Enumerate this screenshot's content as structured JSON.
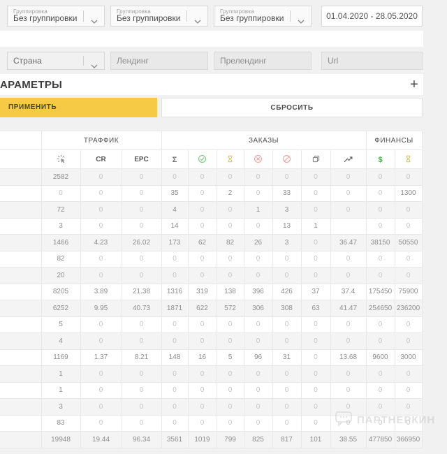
{
  "toolbar": {
    "groupings": [
      {
        "label": "Группировка",
        "value": "Без группировки"
      },
      {
        "label": "Группировка",
        "value": "Без группировки"
      },
      {
        "label": "Группировка",
        "value": "Без группировки"
      }
    ],
    "date_range": "01.04.2020 - 28.05.2020"
  },
  "filters": {
    "country_value": "Страна",
    "landing_placeholder": "Лендинг",
    "prelanding_placeholder": "Прелендинг",
    "url_placeholder": "Url"
  },
  "params": {
    "title": "АРАМЕТРЫ",
    "add_label": "+",
    "apply_label": "ПРИМЕНИТЬ",
    "reset_label": "СБРОСИТЬ"
  },
  "table": {
    "groups": [
      {
        "label": "",
        "span": 1
      },
      {
        "label": "ТРАФФИК",
        "span": 3
      },
      {
        "label": "ЗАКАЗЫ",
        "span": 7
      },
      {
        "label": "ФИНАНСЫ",
        "span": 2
      }
    ],
    "columns": [
      {
        "id": "row-name",
        "label": ""
      },
      {
        "id": "clicks",
        "icon": "cursor-click-icon",
        "color": "#8a8a8a"
      },
      {
        "id": "cr",
        "label": "CR"
      },
      {
        "id": "epc",
        "label": "EPC"
      },
      {
        "id": "orders-total",
        "glyph": "Σ",
        "color": "#6e6e6e"
      },
      {
        "id": "orders-approved",
        "icon": "check-circle-icon",
        "color": "#7cc47f"
      },
      {
        "id": "orders-pending",
        "icon": "hourglass-icon",
        "color": "#d8c56b"
      },
      {
        "id": "orders-rejected",
        "icon": "x-circle-icon",
        "color": "#efa0a0"
      },
      {
        "id": "orders-canceled",
        "icon": "no-entry-icon",
        "color": "#efa0a0"
      },
      {
        "id": "orders-duplicates",
        "icon": "copy-icon",
        "color": "#8a8a8a"
      },
      {
        "id": "orders-trend",
        "icon": "trend-up-icon",
        "color": "#5a5a5a"
      },
      {
        "id": "finance-confirmed",
        "glyph": "$",
        "color": "#4caf50"
      },
      {
        "id": "finance-pending",
        "icon": "hourglass-icon",
        "color": "#d8c56b"
      }
    ],
    "rows": [
      [
        "2582",
        "0",
        "0",
        "0",
        "0",
        "0",
        "0",
        "0",
        "0",
        "0",
        "0",
        "0"
      ],
      [
        "0",
        "0",
        "0",
        "35",
        "0",
        "2",
        "0",
        "33",
        "0",
        "0",
        "0",
        "1300"
      ],
      [
        "72",
        "0",
        "0",
        "4",
        "0",
        "0",
        "1",
        "3",
        "0",
        "0",
        "0",
        "0"
      ],
      [
        "3",
        "0",
        "0",
        "14",
        "0",
        "0",
        "0",
        "13",
        "1",
        "",
        "0",
        "0"
      ],
      [
        "1466",
        "4.23",
        "26.02",
        "173",
        "62",
        "82",
        "26",
        "3",
        "0",
        "36.47",
        "38150",
        "50550"
      ],
      [
        "82",
        "0",
        "0",
        "0",
        "0",
        "0",
        "0",
        "0",
        "0",
        "0",
        "0",
        "0"
      ],
      [
        "20",
        "0",
        "0",
        "0",
        "0",
        "0",
        "0",
        "0",
        "0",
        "0",
        "0",
        "0"
      ],
      [
        "8205",
        "3.89",
        "21.38",
        "1316",
        "319",
        "138",
        "396",
        "426",
        "37",
        "37.4",
        "175450",
        "75900"
      ],
      [
        "6252",
        "9.95",
        "40.73",
        "1871",
        "622",
        "572",
        "306",
        "308",
        "63",
        "41.47",
        "254650",
        "236200"
      ],
      [
        "5",
        "0",
        "0",
        "0",
        "0",
        "0",
        "0",
        "0",
        "0",
        "0",
        "0",
        "0"
      ],
      [
        "4",
        "0",
        "0",
        "0",
        "0",
        "0",
        "0",
        "0",
        "0",
        "0",
        "0",
        "0"
      ],
      [
        "1169",
        "1.37",
        "8.21",
        "148",
        "16",
        "5",
        "96",
        "31",
        "0",
        "13.68",
        "9600",
        "3000"
      ],
      [
        "1",
        "0",
        "0",
        "0",
        "0",
        "0",
        "0",
        "0",
        "0",
        "0",
        "0",
        "0"
      ],
      [
        "1",
        "0",
        "0",
        "0",
        "0",
        "0",
        "0",
        "0",
        "0",
        "0",
        "0",
        "0"
      ],
      [
        "3",
        "0",
        "0",
        "0",
        "0",
        "0",
        "0",
        "0",
        "0",
        "0",
        "0",
        "0"
      ],
      [
        "83",
        "0",
        "0",
        "0",
        "0",
        "0",
        "0",
        "0",
        "0",
        "0",
        "0",
        "0"
      ],
      [
        "19948",
        "19.44",
        "96.34",
        "3561",
        "1019",
        "799",
        "825",
        "817",
        "101",
        "38.55",
        "477850",
        "366950"
      ]
    ]
  },
  "watermark": {
    "text": "ПАРТНЕРКИН",
    "icon": "speech-bubble-icon"
  }
}
